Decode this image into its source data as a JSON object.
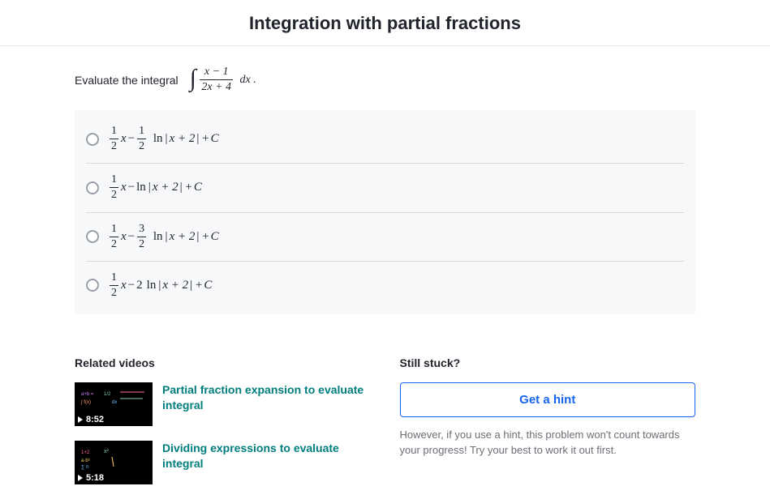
{
  "title": "Integration with partial fractions",
  "prompt_prefix": "Evaluate the integral",
  "integral": {
    "numerator": "x − 1",
    "denominator": "2x + 4",
    "suffix": "dx ."
  },
  "options": [
    {
      "half_x": true,
      "coef_num": "1",
      "coef_den": "2",
      "coef_plain": null,
      "ln_arg": "x + 2"
    },
    {
      "half_x": true,
      "coef_num": null,
      "coef_den": null,
      "coef_plain": null,
      "ln_arg": "x + 2"
    },
    {
      "half_x": true,
      "coef_num": "3",
      "coef_den": "2",
      "coef_plain": null,
      "ln_arg": "x + 2"
    },
    {
      "half_x": true,
      "coef_num": null,
      "coef_den": null,
      "coef_plain": "2",
      "ln_arg": "x + 2"
    }
  ],
  "related": {
    "label": "Related videos",
    "videos": [
      {
        "title": "Partial fraction expansion to evaluate integral",
        "duration": "8:52"
      },
      {
        "title": "Dividing expressions to evaluate integral",
        "duration": "5:18"
      }
    ]
  },
  "stuck": {
    "label": "Still stuck?",
    "button": "Get a hint",
    "note": "However, if you use a hint, this problem won't count towards your progress! Try your best to work it out first."
  },
  "colors": {
    "accent_teal": "#007d7d",
    "accent_blue": "#1865f2",
    "option_bg": "#f7f8fa"
  }
}
